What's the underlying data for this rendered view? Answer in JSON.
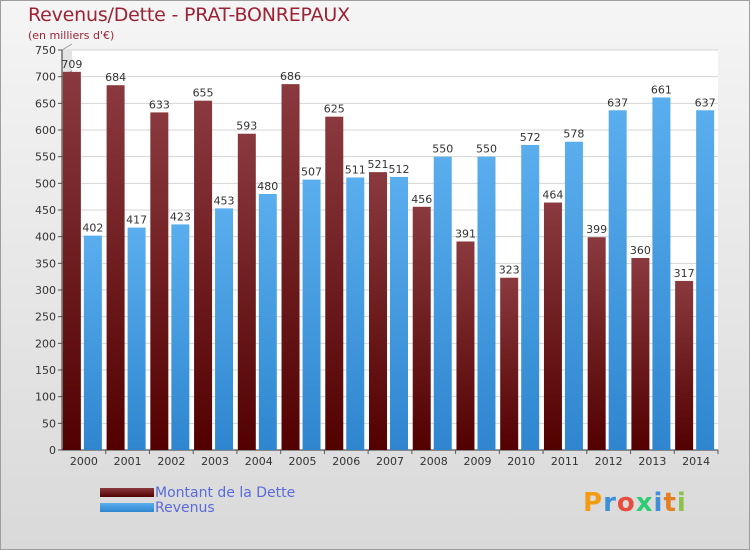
{
  "header": {
    "title": "Revenus/Dette - PRAT-BONREPAUX",
    "subtitle": "(en milliers d'€)"
  },
  "legend": {
    "items": [
      {
        "label": "Montant de la Dette",
        "color": "#6e1a1e"
      },
      {
        "label": "Revenus",
        "color": "#4aa3e6"
      }
    ]
  },
  "logo": {
    "letters": [
      "P",
      "r",
      "o",
      "x",
      "i",
      "t",
      "i"
    ],
    "colors": [
      "#f39c12",
      "#3e8fd8",
      "#e74c3c",
      "#2ecc71",
      "#3e8fd8",
      "#e67e22",
      "#8bc34a"
    ]
  },
  "chart_data": {
    "type": "bar",
    "title": "Revenus/Dette - PRAT-BONREPAUX",
    "subtitle": "(en milliers d'€)",
    "categories": [
      "2000",
      "2001",
      "2002",
      "2003",
      "2004",
      "2005",
      "2006",
      "2007",
      "2008",
      "2009",
      "2010",
      "2011",
      "2012",
      "2013",
      "2014"
    ],
    "series": [
      {
        "name": "Montant de la Dette",
        "color": "#7a1f23",
        "values": [
          709,
          684,
          633,
          655,
          593,
          686,
          625,
          521,
          456,
          391,
          323,
          464,
          399,
          360,
          317
        ]
      },
      {
        "name": "Revenus",
        "color": "#4aa3e6",
        "values": [
          402,
          417,
          423,
          453,
          480,
          507,
          511,
          512,
          550,
          550,
          572,
          578,
          637,
          661,
          637
        ]
      }
    ],
    "ylim": [
      0,
      750
    ],
    "yticks": [
      0,
      50,
      100,
      150,
      200,
      250,
      300,
      350,
      400,
      450,
      500,
      550,
      600,
      650,
      700,
      750
    ],
    "grid": true,
    "legend_position": "bottom-left"
  }
}
